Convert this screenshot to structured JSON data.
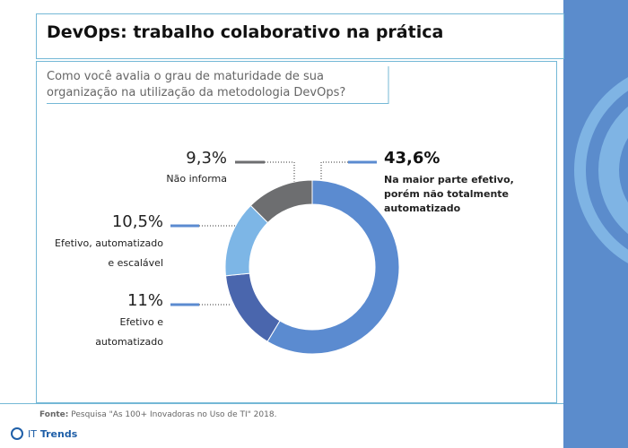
{
  "chart_data": {
    "type": "pie",
    "title": "DevOps: trabalho colaborativo na prática",
    "subtitle": "Como você avalia o grau de maturidade de sua organização na utilização da metodologia DevOps?",
    "categories": [
      "Na maior parte efetivo, porém não totalmente automatizado",
      "Efetivo e automatizado",
      "Efetivo, automatizado e escalável",
      "Não informa"
    ],
    "values": [
      43.6,
      11,
      10.5,
      9.3
    ],
    "value_labels": [
      "43,6%",
      "11%",
      "10,5%",
      "9,3%"
    ],
    "colors": [
      "#5b8bd0",
      "#4a66ad",
      "#7db6e6",
      "#6d6e70"
    ],
    "source_label": "Fonte:",
    "source": "Pesquisa \"As 100+ Inovadoras no Uso de TI\" 2018."
  },
  "brand": {
    "prefix": "IT",
    "name": "Trends"
  }
}
